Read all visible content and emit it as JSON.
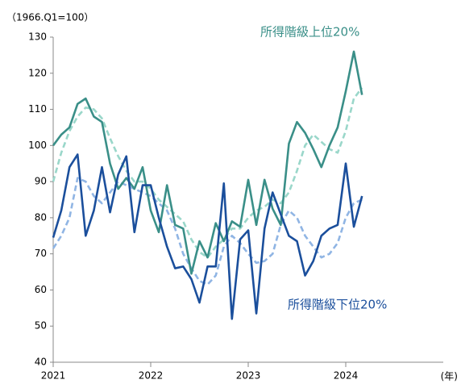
{
  "chart_data": {
    "type": "line",
    "y_label": "（1966.Q1=100）",
    "x_label": "(年)",
    "x": [
      2021,
      2021.083,
      2021.167,
      2021.25,
      2021.333,
      2021.417,
      2021.5,
      2021.583,
      2021.667,
      2021.75,
      2021.833,
      2021.917,
      2022,
      2022.083,
      2022.167,
      2022.25,
      2022.333,
      2022.417,
      2022.5,
      2022.583,
      2022.667,
      2022.75,
      2022.833,
      2022.917,
      2023,
      2023.083,
      2023.167,
      2023.25,
      2023.333,
      2023.417,
      2023.5,
      2023.583,
      2023.667,
      2023.75,
      2023.833,
      2023.917,
      2024,
      2024.083,
      2024.167
    ],
    "series": [
      {
        "color": "#9ad7ca",
        "dashed": true,
        "values": [
          90,
          98,
          104,
          108,
          110.5,
          110,
          107.5,
          102,
          97,
          93,
          90,
          90,
          88,
          85,
          83,
          81,
          79,
          74,
          70.5,
          69,
          72,
          74,
          77,
          77,
          80,
          82,
          83,
          85,
          84,
          87,
          93,
          100,
          103,
          101,
          99,
          98,
          104,
          113,
          116
        ]
      },
      {
        "color": "#90b5e4",
        "dashed": true,
        "values": [
          71.5,
          75,
          80,
          91,
          90,
          86,
          84,
          87,
          90,
          89,
          88,
          87,
          86,
          84,
          82,
          77,
          70,
          66,
          62.5,
          61.5,
          64,
          72,
          75,
          73,
          70,
          67.5,
          68,
          70,
          78,
          82,
          80,
          75,
          72,
          69,
          70,
          73,
          80,
          84,
          85
        ]
      },
      {
        "name": "所得階級上位20%",
        "color": "#3a8f88",
        "dashed": false,
        "values": [
          100,
          103,
          105,
          111.5,
          113,
          108,
          106.5,
          95,
          88,
          91,
          88,
          94,
          82,
          76,
          89,
          78,
          77,
          64.5,
          73.5,
          69,
          78.5,
          73.5,
          79,
          77.5,
          90.5,
          78,
          90.5,
          82.5,
          78,
          100.5,
          106.5,
          103.5,
          99,
          94,
          100,
          105,
          115,
          126,
          114
        ]
      },
      {
        "name": "所得階級下位20%",
        "color": "#1b4f9c",
        "dashed": false,
        "values": [
          74.5,
          82,
          94,
          97.5,
          75,
          82,
          94,
          81.5,
          92,
          97,
          76,
          89,
          89,
          80,
          72,
          66,
          66.5,
          63,
          56.5,
          66.5,
          66.5,
          89.5,
          52,
          74,
          76.5,
          53.5,
          77,
          87,
          81,
          75,
          73.5,
          64,
          68,
          75,
          77,
          78,
          95,
          77.5,
          86
        ]
      }
    ],
    "xlim": [
      2021,
      2025
    ],
    "xticks": [
      2021,
      2022,
      2023,
      2024
    ],
    "ylim": [
      40,
      130
    ],
    "yticks": [
      40,
      50,
      60,
      70,
      80,
      90,
      100,
      110,
      120,
      130
    ],
    "grid": false
  }
}
